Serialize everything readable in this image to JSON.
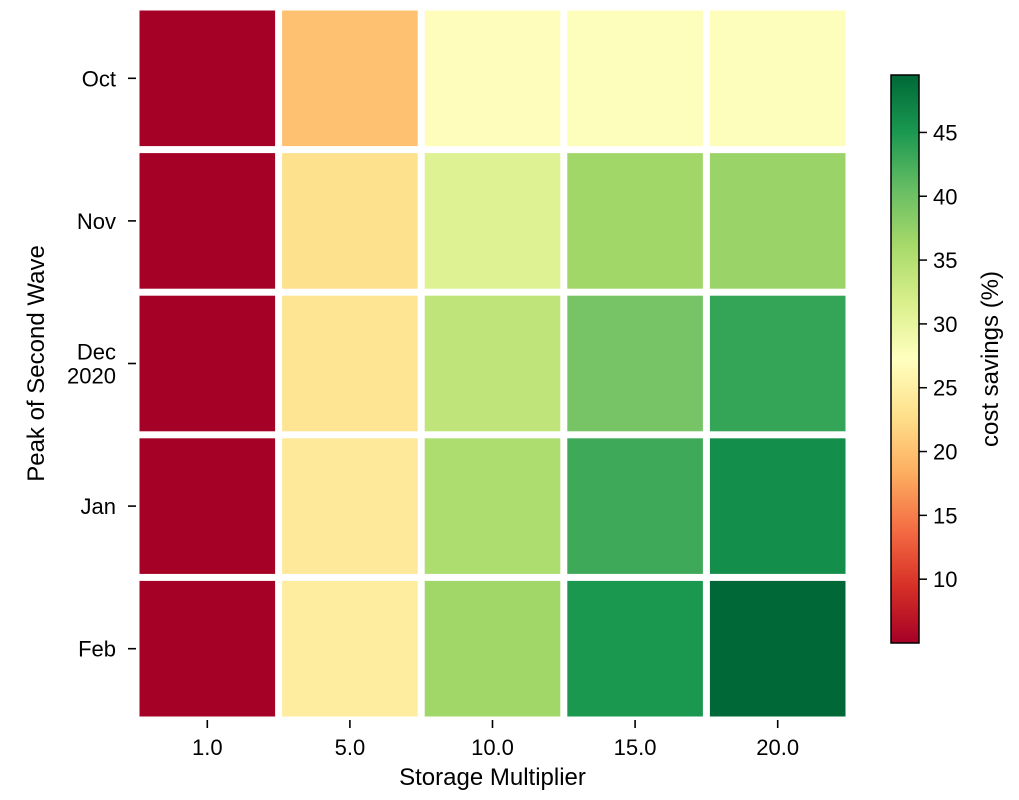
{
  "chart_data": {
    "type": "heatmap",
    "xlabel": "Storage Multiplier",
    "ylabel": "Peak of Second Wave",
    "x_categories": [
      "1.0",
      "5.0",
      "10.0",
      "15.0",
      "20.0"
    ],
    "y_categories": [
      [
        "Oct"
      ],
      [
        "Nov"
      ],
      [
        "Dec",
        "2020"
      ],
      [
        "Jan"
      ],
      [
        "Feb"
      ]
    ],
    "values": [
      [
        5.0,
        20.0,
        27.0,
        27.5,
        27.5
      ],
      [
        5.0,
        23.0,
        31.0,
        36.5,
        37.0
      ],
      [
        5.0,
        23.5,
        34.0,
        39.5,
        43.5
      ],
      [
        5.0,
        24.0,
        35.5,
        43.0,
        46.0
      ],
      [
        5.0,
        24.5,
        36.5,
        45.0,
        49.5
      ]
    ],
    "colorbar": {
      "label": "cost savings (%)",
      "min": 5.0,
      "max": 49.5,
      "ticks": [
        10,
        15,
        20,
        25,
        30,
        35,
        40,
        45
      ],
      "colormap": "RdYlGn",
      "stops": [
        "#a50026",
        "#d73027",
        "#f46d43",
        "#fdae61",
        "#fee08b",
        "#ffffbf",
        "#d9ef8b",
        "#a6d96a",
        "#66bd63",
        "#1a9850",
        "#006837"
      ]
    },
    "grid": false,
    "legend": "colorbar-right"
  }
}
